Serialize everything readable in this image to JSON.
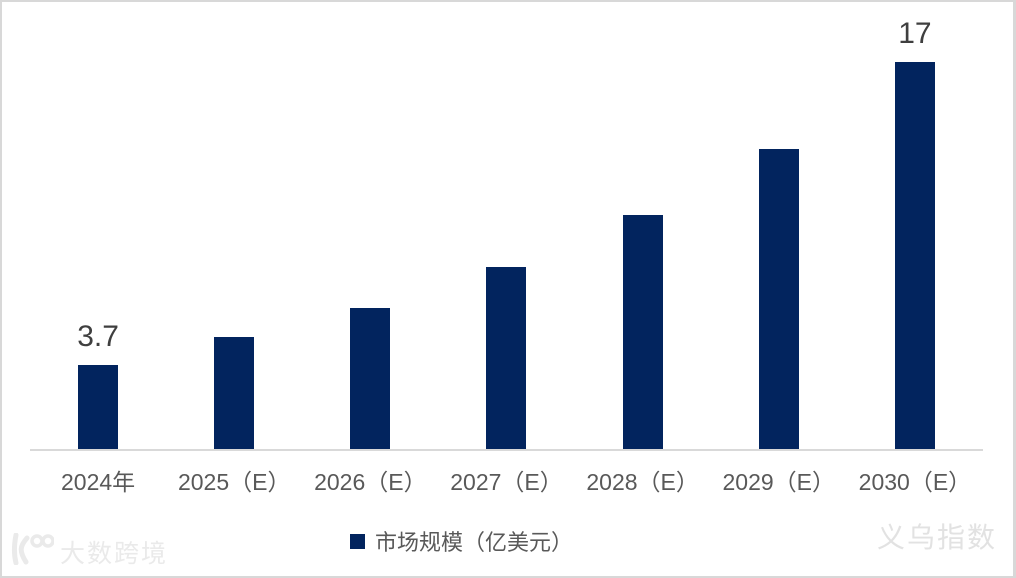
{
  "chart_data": {
    "type": "bar",
    "title": "",
    "xlabel": "",
    "ylabel": "",
    "categories": [
      "2024年",
      "2025（E）",
      "2026（E）",
      "2027（E）",
      "2028（E）",
      "2029（E）",
      "2030（E）"
    ],
    "values": [
      3.7,
      4.9,
      6.2,
      8.0,
      10.3,
      13.2,
      17
    ],
    "data_labels": [
      "3.7",
      "",
      "",
      "",
      "",
      "",
      "17"
    ],
    "legend": "市场规模（亿美元）",
    "legend_position": "bottom",
    "ylim": [
      0,
      17
    ],
    "grid": false,
    "bar_color": "#02245e",
    "axis_line_color": "#d9d9d9",
    "data_label_color": "#3f3f3f",
    "tick_label_color": "#595959"
  },
  "watermarks": {
    "bottom_left_logo": "dashu-kuajing-logo",
    "bottom_left_text": "大数跨境",
    "bottom_right_text": "义乌指数",
    "watermark_color": "#eaeaea"
  }
}
